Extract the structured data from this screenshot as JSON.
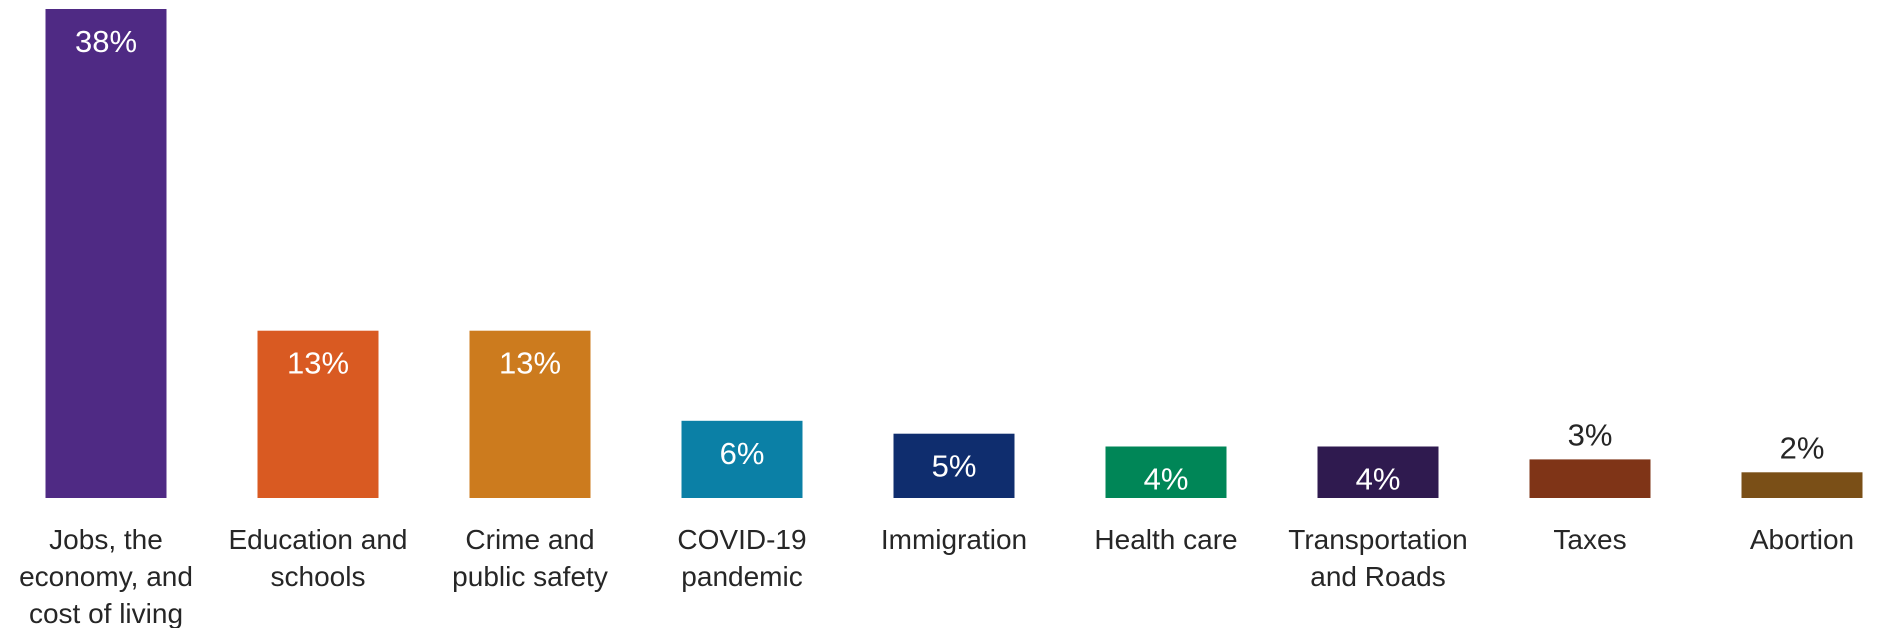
{
  "chart_data": {
    "type": "bar",
    "title": "",
    "xlabel": "",
    "ylabel": "",
    "ylim": [
      0,
      38
    ],
    "grid": false,
    "legend": "none",
    "value_suffix": "%",
    "categories": [
      [
        "Jobs, the",
        "economy, and",
        "cost of living"
      ],
      [
        "Education and",
        "schools"
      ],
      [
        "Crime and",
        "public safety"
      ],
      [
        "COVID-19",
        "pandemic"
      ],
      [
        "Immigration"
      ],
      [
        "Health care"
      ],
      [
        "Transportation",
        "and Roads"
      ],
      [
        "Taxes"
      ],
      [
        "Abortion"
      ]
    ],
    "values": [
      38,
      13,
      13,
      6,
      5,
      4,
      4,
      3,
      2
    ],
    "labels": [
      "38%",
      "13%",
      "13%",
      "6%",
      "5%",
      "4%",
      "4%",
      "3%",
      "2%"
    ],
    "colors": [
      "#4f2a84",
      "#d95a22",
      "#cc7b1e",
      "#0b80a6",
      "#0f2d6e",
      "#008657",
      "#2f1a4f",
      "#7f3417",
      "#7a4f17"
    ],
    "label_inside": [
      true,
      true,
      true,
      true,
      true,
      true,
      true,
      false,
      false
    ]
  }
}
